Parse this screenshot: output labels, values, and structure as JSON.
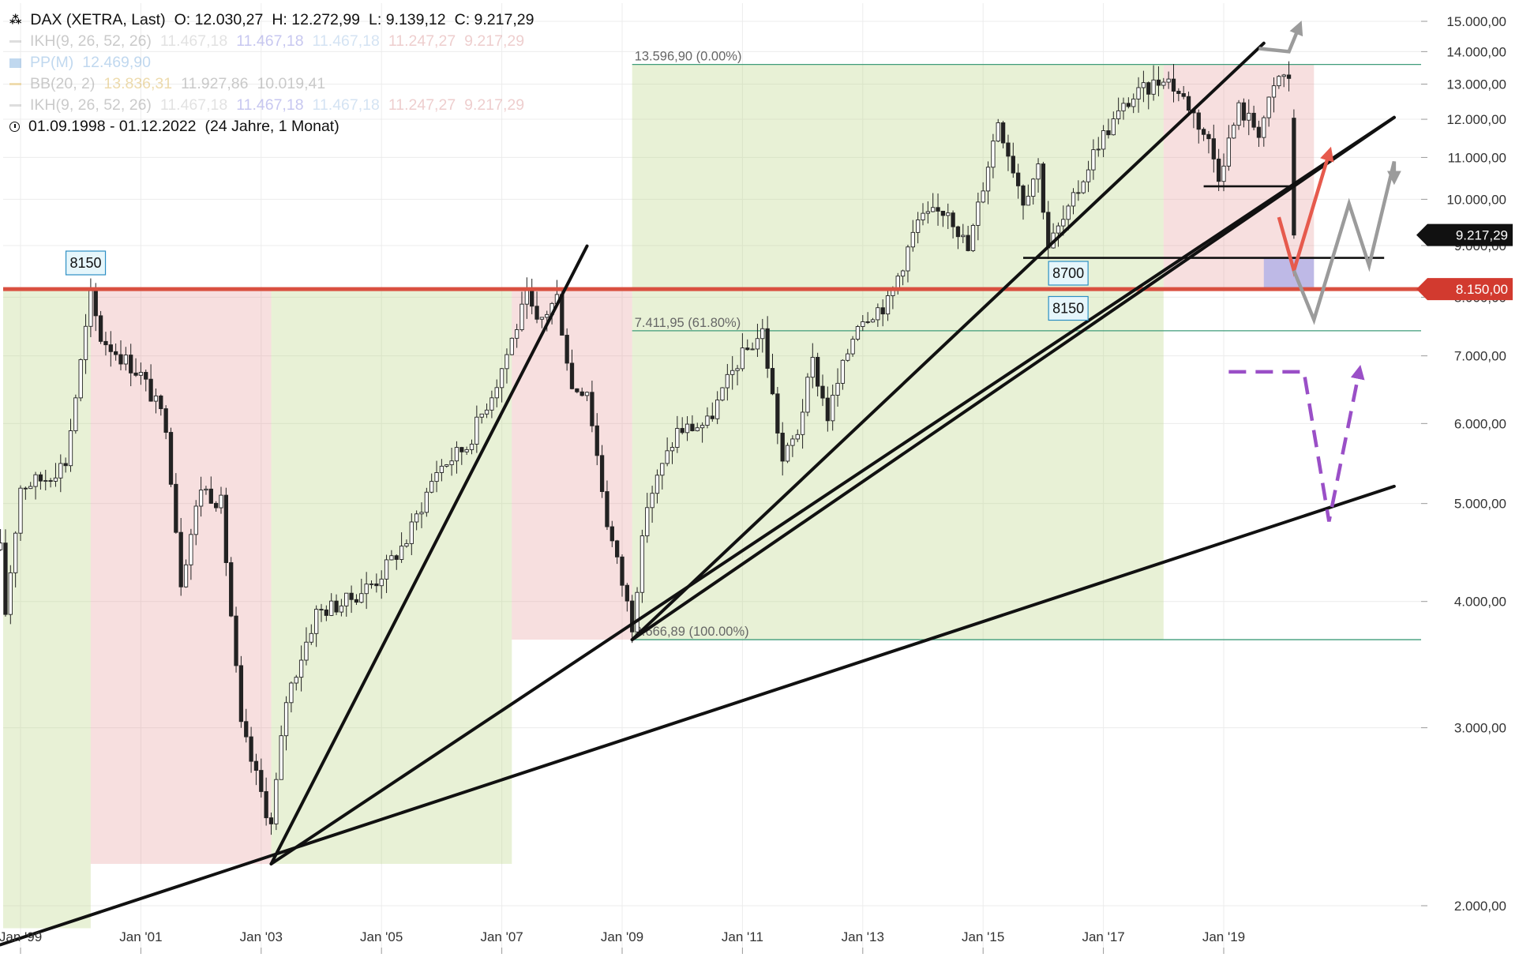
{
  "header": {
    "instrument": "DAX (XETRA, Last)",
    "open": "O: 12.030,27",
    "high": "H: 12.272,99",
    "low": "L: 9.139,12",
    "close": "C: 9.217,29",
    "date_range": "01.09.1998 - 01.12.2022",
    "duration": "(24 Jahre, 1 Monat)"
  },
  "indicators": [
    {
      "name": "IKH(9, 26, 52, 26)",
      "values": [
        "11.467,18",
        "11.467,18",
        "11.467,18",
        "11.247,27",
        "9.217,29"
      ],
      "colors": [
        "#b5b5b5",
        "#6f6fd8",
        "#8fb7e0",
        "#d38080",
        "#d38080"
      ],
      "swatch": "#aaaaaa"
    },
    {
      "name": "PP(M)",
      "values": [
        "12.469,90"
      ],
      "colors": [
        "#5d9ad6"
      ],
      "swatch": "#5d9ad6"
    },
    {
      "name": "BB(20, 2)",
      "values": [
        "13.836,31",
        "11.927,86",
        "10.019,41"
      ],
      "colors": [
        "#d2a22a",
        "#777777",
        "#777777"
      ],
      "swatch": "#e3b23c"
    },
    {
      "name": "IKH(9, 26, 52, 26)",
      "values": [
        "11.467,18",
        "11.467,18",
        "11.467,18",
        "11.247,27",
        "9.217,29"
      ],
      "colors": [
        "#b5b5b5",
        "#6f6fd8",
        "#8fb7e0",
        "#d38080",
        "#d38080"
      ],
      "swatch": "#aaaaaa"
    }
  ],
  "chart_data": {
    "type": "candlestick",
    "scale": "log",
    "ylim": [
      1900,
      15800
    ],
    "xlim": [
      "1998-09",
      "2021-11"
    ],
    "y_ticks": [
      {
        "v": 2000,
        "label": "2.000,00"
      },
      {
        "v": 3000,
        "label": "3.000,00"
      },
      {
        "v": 4000,
        "label": "4.000,00"
      },
      {
        "v": 5000,
        "label": "5.000,00"
      },
      {
        "v": 6000,
        "label": "6.000,00"
      },
      {
        "v": 7000,
        "label": "7.000,00"
      },
      {
        "v": 8000,
        "label": "8.000,00"
      },
      {
        "v": 9000,
        "label": "9.000,00"
      },
      {
        "v": 10000,
        "label": "10.000,00"
      },
      {
        "v": 11000,
        "label": "11.000,00"
      },
      {
        "v": 12000,
        "label": "12.000,00"
      },
      {
        "v": 13000,
        "label": "13.000,00"
      },
      {
        "v": 14000,
        "label": "14.000,00"
      },
      {
        "v": 15000,
        "label": "15.000,00"
      }
    ],
    "x_ticks": [
      {
        "t": "1999-01",
        "label": "Jan '99"
      },
      {
        "t": "2001-01",
        "label": "Jan '01"
      },
      {
        "t": "2003-01",
        "label": "Jan '03"
      },
      {
        "t": "2005-01",
        "label": "Jan '05"
      },
      {
        "t": "2007-01",
        "label": "Jan '07"
      },
      {
        "t": "2009-01",
        "label": "Jan '09"
      },
      {
        "t": "2011-01",
        "label": "Jan '11"
      },
      {
        "t": "2013-01",
        "label": "Jan '13"
      },
      {
        "t": "2015-01",
        "label": "Jan '15"
      },
      {
        "t": "2017-01",
        "label": "Jan '17"
      },
      {
        "t": "2019-01",
        "label": "Jan '19"
      }
    ],
    "anchors": [
      [
        "1998-09",
        4500
      ],
      [
        "1998-10",
        3900
      ],
      [
        "1999-01",
        5200
      ],
      [
        "1999-06",
        5300
      ],
      [
        "1999-10",
        5500
      ],
      [
        "2000-03",
        8000
      ],
      [
        "2000-05",
        7300
      ],
      [
        "2000-09",
        7000
      ],
      [
        "2001-01",
        6700
      ],
      [
        "2001-06",
        6000
      ],
      [
        "2001-09",
        4200
      ],
      [
        "2002-01",
        5200
      ],
      [
        "2002-05",
        5000
      ],
      [
        "2002-09",
        3000
      ],
      [
        "2003-03",
        2400
      ],
      [
        "2003-06",
        3200
      ],
      [
        "2003-12",
        3900
      ],
      [
        "2004-06",
        4000
      ],
      [
        "2004-12",
        4200
      ],
      [
        "2005-06",
        4600
      ],
      [
        "2005-12",
        5400
      ],
      [
        "2006-06",
        5700
      ],
      [
        "2006-12",
        6600
      ],
      [
        "2007-06",
        8000
      ],
      [
        "2007-08",
        7500
      ],
      [
        "2007-12",
        8000
      ],
      [
        "2008-03",
        6500
      ],
      [
        "2008-06",
        6500
      ],
      [
        "2008-10",
        4800
      ],
      [
        "2009-03",
        3800
      ],
      [
        "2009-06",
        5000
      ],
      [
        "2009-12",
        5900
      ],
      [
        "2010-06",
        6000
      ],
      [
        "2010-12",
        6900
      ],
      [
        "2011-05",
        7400
      ],
      [
        "2011-09",
        5500
      ],
      [
        "2011-12",
        5900
      ],
      [
        "2012-03",
        6900
      ],
      [
        "2012-06",
        6100
      ],
      [
        "2012-12",
        7600
      ],
      [
        "2013-06",
        7900
      ],
      [
        "2013-12",
        9500
      ],
      [
        "2014-06",
        9800
      ],
      [
        "2014-10",
        8900
      ],
      [
        "2015-04",
        12000
      ],
      [
        "2015-09",
        10000
      ],
      [
        "2015-12",
        10800
      ],
      [
        "2016-02",
        9000
      ],
      [
        "2016-06",
        9700
      ],
      [
        "2016-12",
        11400
      ],
      [
        "2017-06",
        12500
      ],
      [
        "2017-12",
        13100
      ],
      [
        "2018-01",
        13300
      ],
      [
        "2018-06",
        12400
      ],
      [
        "2018-10",
        11400
      ],
      [
        "2018-12",
        10600
      ],
      [
        "2019-04",
        12300
      ],
      [
        "2019-08",
        11700
      ],
      [
        "2019-12",
        13200
      ],
      [
        "2020-02",
        13200
      ],
      [
        "2020-03",
        9217
      ]
    ],
    "candles": "monthly OHLC interpolated along the anchor path; last bar O 12.030,27 H 12.272,99 L 9.139,12 C 9.217,29",
    "shaded_regions": [
      {
        "from": "1998-09",
        "to": "2000-03",
        "lo": 1900,
        "hi": 8150,
        "color": "green"
      },
      {
        "from": "2000-03",
        "to": "2003-03",
        "lo": 2200,
        "hi": 8150,
        "color": "red"
      },
      {
        "from": "2003-03",
        "to": "2007-03",
        "lo": 2200,
        "hi": 8150,
        "color": "green"
      },
      {
        "from": "2007-03",
        "to": "2009-03",
        "lo": 3666.89,
        "hi": 8150,
        "color": "red"
      },
      {
        "from": "2009-03",
        "to": "2018-01",
        "lo": 3666.89,
        "hi": 13596.9,
        "color": "green"
      },
      {
        "from": "2018-01",
        "to": "2020-07",
        "lo": 8150,
        "hi": 13596.9,
        "color": "red"
      },
      {
        "from": "2019-09",
        "to": "2020-07",
        "lo": 8150,
        "hi": 8750,
        "color": "blue"
      }
    ],
    "fibonacci": [
      {
        "value": 13596.9,
        "label": "13.596,90 (0.00%)"
      },
      {
        "value": 7411.95,
        "label": "7.411,95 (61.80%)"
      },
      {
        "value": 3666.89,
        "label": "3.666,89 (100.00%)"
      }
    ],
    "trendlines": [
      {
        "from": [
          "1998-09",
          1830
        ],
        "to": [
          "2021-11",
          5200
        ]
      },
      {
        "from": [
          "2003-03",
          2200
        ],
        "to": [
          "2008-06",
          8990
        ]
      },
      {
        "from": [
          "2003-03",
          2200
        ],
        "to": [
          "2021-11",
          12050
        ]
      },
      {
        "from": [
          "2009-03",
          3666.89
        ],
        "to": [
          "2021-11",
          12050
        ]
      },
      {
        "from": [
          "2009-03",
          3666.89
        ],
        "to": [
          "2019-09",
          14270
        ]
      }
    ],
    "horizontal_lines": [
      {
        "value": 8150,
        "color": "red",
        "label": "8.150,00"
      },
      {
        "value": 8750,
        "from": "2015-09",
        "to": "2021-09",
        "color": "black"
      },
      {
        "value": 10300,
        "from": "2018-09",
        "to": "2020-03",
        "color": "black"
      }
    ],
    "level_boxes": [
      {
        "text": "8150",
        "t": "2000-02",
        "v": 8650
      },
      {
        "text": "8700",
        "t": "2016-06",
        "v": 8450
      },
      {
        "text": "8150",
        "t": "2016-06",
        "v": 7800
      }
    ],
    "price_tags": [
      {
        "value": 9217.29,
        "label": "9.217,29",
        "color": "#111111"
      },
      {
        "value": 8150,
        "label": "8.150,00",
        "color": "#d23a2f"
      }
    ],
    "scenario_arrows": [
      {
        "color": "red",
        "points": [
          [
            "2019-12",
            9600
          ],
          [
            "2020-03",
            8500
          ],
          [
            "2020-10",
            11100
          ]
        ]
      },
      {
        "color": "gray",
        "points": [
          [
            "2020-03",
            8500
          ],
          [
            "2020-07",
            7600
          ],
          [
            "2021-02",
            9900
          ],
          [
            "2021-06",
            8600
          ],
          [
            "2021-11",
            10900
          ],
          [
            "2021-11",
            10500
          ]
        ]
      },
      {
        "color": "gray",
        "points": [
          [
            "2019-08",
            14100
          ],
          [
            "2020-02",
            14000
          ],
          [
            "2020-04",
            14800
          ]
        ]
      },
      {
        "color": "purple",
        "dashed": true,
        "points": [
          [
            "2019-02",
            6750
          ],
          [
            "2020-05",
            6750
          ],
          [
            "2020-10",
            4800
          ],
          [
            "2021-04",
            6750
          ]
        ]
      }
    ]
  }
}
